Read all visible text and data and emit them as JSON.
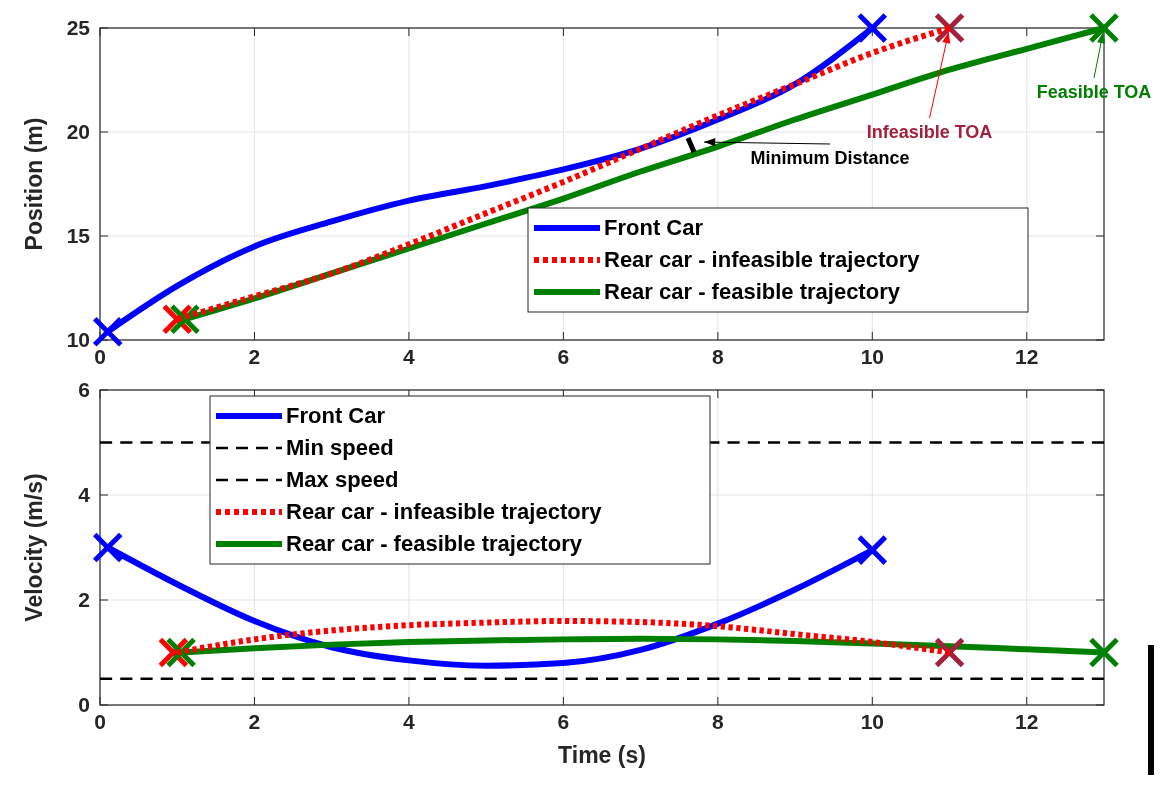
{
  "chart_data": [
    {
      "type": "line",
      "ylabel": "Position (m)",
      "xlim": [
        0,
        13
      ],
      "ylim": [
        10,
        25
      ],
      "xticks": [
        0,
        2,
        4,
        6,
        8,
        10,
        12
      ],
      "yticks": [
        10,
        15,
        20,
        25
      ],
      "grid": true,
      "legend": "bottom right",
      "series": [
        {
          "name": "Front Car",
          "color": "#0000ff",
          "line_style": "solid",
          "x": [
            0.1,
            1,
            2,
            3,
            4,
            5,
            6,
            7,
            8,
            9,
            10
          ],
          "values": [
            10.4,
            12.6,
            14.5,
            15.7,
            16.7,
            17.4,
            18.2,
            19.2,
            20.6,
            22.3,
            25
          ]
        },
        {
          "name": "Rear car - infeasible trajectory",
          "color": "#ff0000",
          "line_style": "dotted",
          "x": [
            1,
            2,
            3,
            4,
            5,
            6,
            7,
            8,
            9,
            10,
            11
          ],
          "values": [
            11,
            12.1,
            13.2,
            14.6,
            16.1,
            17.6,
            19.2,
            20.8,
            22.3,
            23.8,
            25
          ]
        },
        {
          "name": "Rear car - feasible trajectory",
          "color": "#008000",
          "line_style": "solid",
          "x": [
            1.1,
            2,
            3,
            4,
            5,
            6,
            7,
            8,
            9,
            10,
            11,
            12,
            13
          ],
          "values": [
            11,
            12.0,
            13.2,
            14.4,
            15.6,
            16.8,
            18.1,
            19.3,
            20.6,
            21.8,
            23.0,
            24.0,
            25
          ]
        },
        {
          "type": "scatter",
          "marker": "cross",
          "color": "#0000ff",
          "x": [
            0.1,
            10
          ],
          "values": [
            10.4,
            25
          ]
        },
        {
          "type": "scatter",
          "marker": "cross",
          "color": "#ff0000",
          "x": [
            1
          ],
          "values": [
            11
          ]
        },
        {
          "type": "scatter",
          "marker": "cross",
          "color": "#a2223c",
          "x": [
            11
          ],
          "values": [
            25
          ]
        },
        {
          "type": "scatter",
          "marker": "cross",
          "color": "#008000",
          "x": [
            1.1,
            13
          ],
          "values": [
            11,
            25
          ]
        }
      ],
      "annotations": [
        "Minimum Distance",
        {
          "text": "Infeasible TOA",
          "x": 11,
          "y": 25
        },
        {
          "text": "Feasible TOA",
          "x": 13,
          "y": 25
        }
      ]
    },
    {
      "type": "line",
      "xlabel": "Time (s)",
      "ylabel": "Velocity (m/s)",
      "xlim": [
        0,
        13
      ],
      "ylim": [
        0,
        6
      ],
      "xticks": [
        0,
        2,
        4,
        6,
        8,
        10,
        12
      ],
      "yticks": [
        0,
        2,
        4,
        6
      ],
      "grid": true,
      "legend": "top left",
      "series": [
        {
          "name": "Front Car",
          "color": "#0000ff",
          "line_style": "solid",
          "x": [
            0.1,
            1,
            2,
            3,
            4,
            5,
            6,
            7,
            8,
            9,
            10
          ],
          "values": [
            3,
            2.3,
            1.6,
            1.1,
            0.85,
            0.75,
            0.8,
            1.05,
            1.55,
            2.2,
            2.95
          ]
        },
        {
          "name": "Min speed",
          "color": "#000000",
          "line_style": "dashed",
          "x": [
            0,
            13
          ],
          "values": [
            0.5,
            0.5
          ]
        },
        {
          "name": "Max speed",
          "color": "#000000",
          "line_style": "dashed",
          "x": [
            0,
            13
          ],
          "values": [
            5,
            5
          ]
        },
        {
          "name": "Rear car - infeasible trajectory",
          "color": "#ff0000",
          "line_style": "dotted",
          "x": [
            1,
            2,
            3,
            4,
            5,
            6,
            7,
            8,
            9,
            10,
            11
          ],
          "values": [
            1,
            1.25,
            1.42,
            1.52,
            1.57,
            1.6,
            1.58,
            1.5,
            1.35,
            1.2,
            1.0
          ]
        },
        {
          "name": "Rear car - feasible trajectory",
          "color": "#008000",
          "line_style": "solid",
          "x": [
            1.05,
            2,
            3,
            4,
            5,
            6,
            7,
            8,
            9,
            10,
            11,
            12,
            13
          ],
          "values": [
            1,
            1.08,
            1.15,
            1.2,
            1.23,
            1.25,
            1.26,
            1.25,
            1.22,
            1.17,
            1.12,
            1.06,
            1.0
          ]
        },
        {
          "type": "scatter",
          "marker": "cross",
          "color": "#0000ff",
          "x": [
            0.1,
            10
          ],
          "values": [
            3,
            2.95
          ]
        },
        {
          "type": "scatter",
          "marker": "cross",
          "color": "#ff0000",
          "x": [
            0.95
          ],
          "values": [
            1
          ]
        },
        {
          "type": "scatter",
          "marker": "cross",
          "color": "#a2223c",
          "x": [
            11
          ],
          "values": [
            1
          ]
        },
        {
          "type": "scatter",
          "marker": "cross",
          "color": "#008000",
          "x": [
            1.05,
            13
          ],
          "values": [
            1,
            1
          ]
        }
      ]
    }
  ]
}
